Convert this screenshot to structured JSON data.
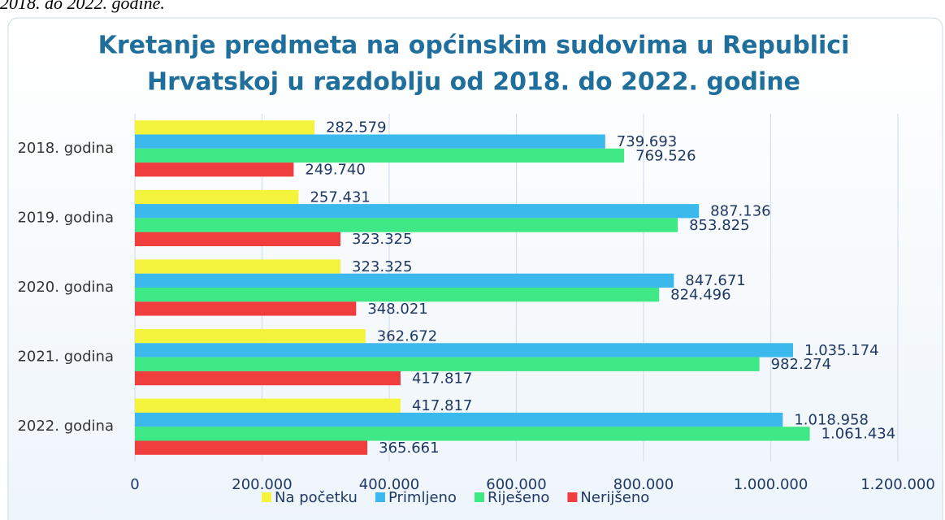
{
  "caption": "2018. do 2022. godine.",
  "chart_data": {
    "type": "barh",
    "title_lines": [
      "Kretanje predmeta na općinskim sudovima u Republici",
      "Hrvatskoj u razdoblju od 2018. do 2022. godine"
    ],
    "categories": [
      "2018. godina",
      "2019. godina",
      "2020. godina",
      "2021. godina",
      "2022. godina"
    ],
    "series": [
      {
        "name": "Na početku",
        "color": "#f4f43c",
        "values": [
          282579,
          257431,
          323325,
          362672,
          417817
        ],
        "value_labels": [
          "282.579",
          "257.431",
          "323.325",
          "362.672",
          "417.817"
        ]
      },
      {
        "name": "Primljeno",
        "color": "#3cb9ec",
        "values": [
          739693,
          887136,
          847671,
          1035174,
          1018958
        ],
        "value_labels": [
          "739.693",
          "887.136",
          "847.671",
          "1.035.174",
          "1.018.958"
        ]
      },
      {
        "name": "Riješeno",
        "color": "#3ee884",
        "values": [
          769526,
          853825,
          824496,
          982274,
          1061434
        ],
        "value_labels": [
          "769.526",
          "853.825",
          "824.496",
          "982.274",
          "1.061.434"
        ]
      },
      {
        "name": "Nerijšeno",
        "color": "#f03e3e",
        "values": [
          249740,
          323325,
          348021,
          417817,
          365661
        ],
        "value_labels": [
          "249.740",
          "323.325",
          "348.021",
          "417.817",
          "365.661"
        ]
      }
    ],
    "xlim": [
      0,
      1200000
    ],
    "xticks": [
      0,
      {
        "value": 200000,
        "label": "200.000"
      },
      {
        "value": 400000,
        "label": "400.000"
      },
      {
        "value": 600000,
        "label": "600.000"
      },
      {
        "value": 800000,
        "label": "800.000"
      },
      {
        "value": 1000000,
        "label": "1.000.000"
      },
      {
        "value": 1200000,
        "label": "1.200.000"
      }
    ],
    "grid": true,
    "legend": "bottom"
  }
}
